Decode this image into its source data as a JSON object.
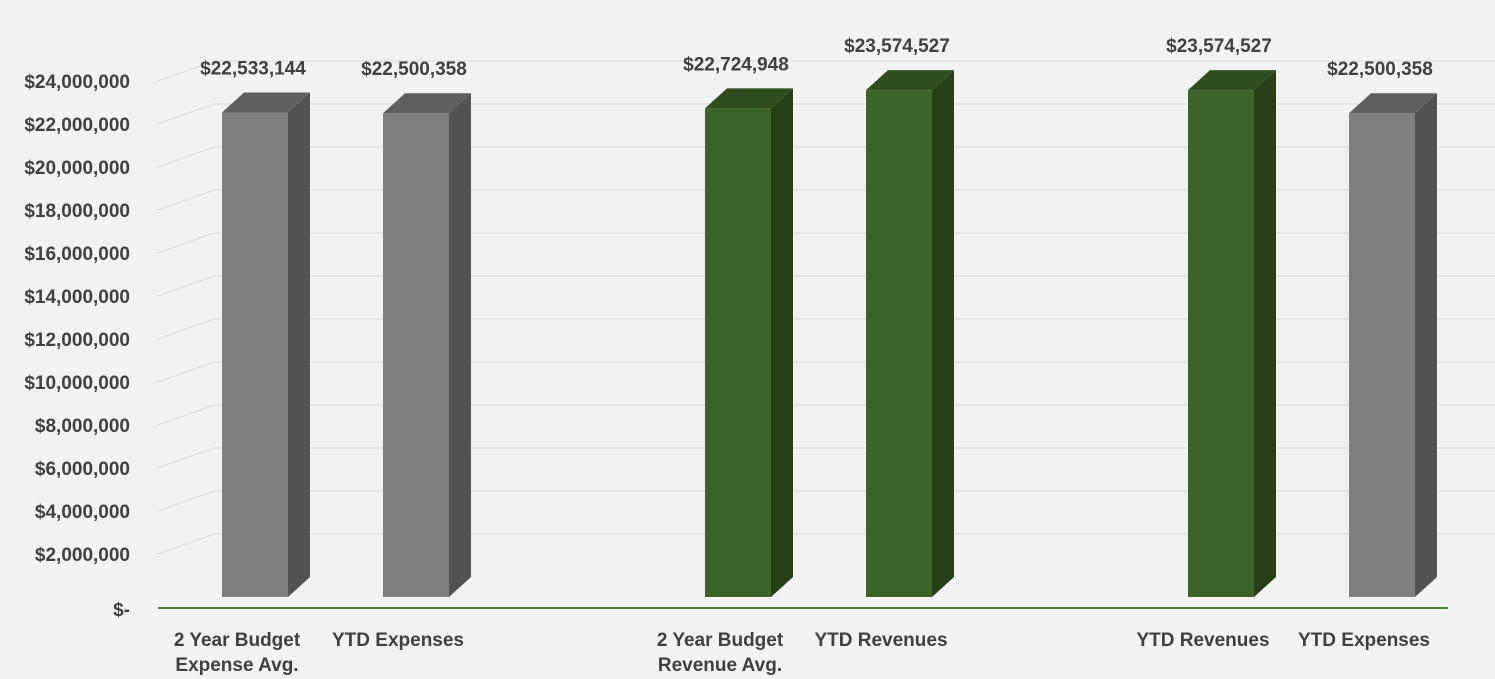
{
  "chart_data": {
    "type": "bar",
    "style": "3d-column",
    "categories": [
      [
        "2 Year Budget",
        "Expense Avg."
      ],
      [
        "YTD Expenses"
      ],
      [],
      [
        "2 Year  Budget",
        "Revenue Avg."
      ],
      [
        "YTD Revenues"
      ],
      [],
      [
        "YTD Revenues"
      ],
      [
        "YTD Expenses"
      ]
    ],
    "values": [
      22533144,
      22500358,
      null,
      22724948,
      23574527,
      null,
      23574527,
      22500358
    ],
    "data_labels": [
      "$22,533,144",
      "$22,500,358",
      "",
      "$22,724,948",
      "$23,574,527",
      "",
      "$23,574,527",
      "$22,500,358"
    ],
    "bar_kinds": [
      "expense",
      "expense",
      "",
      "revenue",
      "revenue",
      "",
      "revenue",
      "expense"
    ],
    "ylim": [
      0,
      24000000
    ],
    "y_ticks": [
      0,
      2000000,
      4000000,
      6000000,
      8000000,
      10000000,
      12000000,
      14000000,
      16000000,
      18000000,
      20000000,
      22000000,
      24000000
    ],
    "y_tick_labels": [
      "$-",
      "$2,000,000",
      "$4,000,000",
      "$6,000,000",
      "$8,000,000",
      "$10,000,000",
      "$12,000,000",
      "$14,000,000",
      "$16,000,000",
      "$18,000,000",
      "$20,000,000",
      "$22,000,000",
      "$24,000,000"
    ],
    "grid": true,
    "legend": "none",
    "colors": {
      "expense_front": "#7f7f7f",
      "expense_side": "#525252",
      "expense_top": "#5f5f5f",
      "revenue_front": "#3d6428",
      "revenue_side": "#263f18",
      "revenue_top": "#2f4d1e",
      "gridline": "#d9d9d9",
      "axis_line": "#548235",
      "text": "#404040"
    }
  }
}
